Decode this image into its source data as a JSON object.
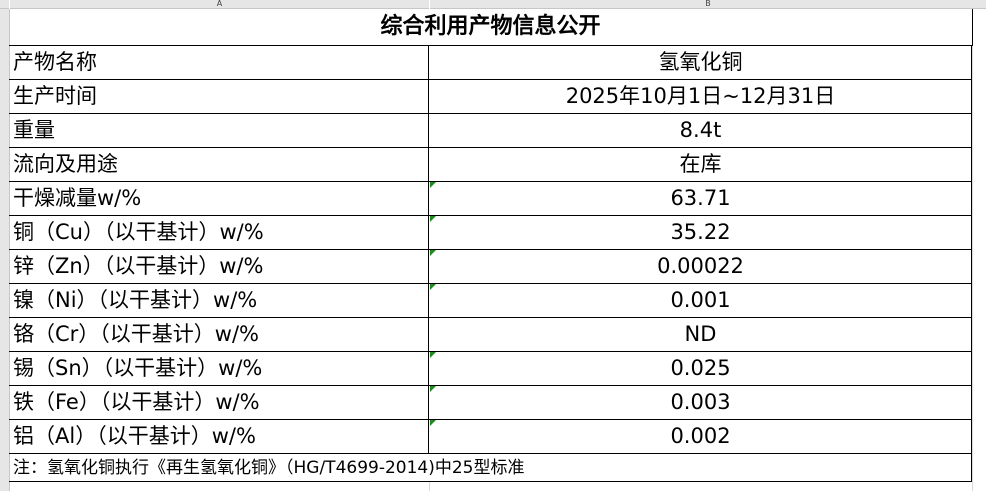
{
  "columns": [
    "A",
    "B"
  ],
  "title": "综合利用产物信息公开",
  "rows": [
    {
      "label": "产物名称",
      "value": "氢氧化铜",
      "flag": false
    },
    {
      "label": "生产时间",
      "value": "2025年10月1日~12月31日",
      "flag": false
    },
    {
      "label": "重量",
      "value": "8.4t",
      "flag": false
    },
    {
      "label": "流向及用途",
      "value": "在库",
      "flag": false
    },
    {
      "label": "干燥减量w/%",
      "value": "63.71",
      "flag": true
    },
    {
      "label": "铜（Cu）（以干基计）w/%",
      "value": "35.22",
      "flag": true
    },
    {
      "label": "锌（Zn）（以干基计）w/%",
      "value": "0.00022",
      "flag": true
    },
    {
      "label": "镍（Ni）（以干基计）w/%",
      "value": "0.001",
      "flag": true
    },
    {
      "label": "铬（Cr）（以干基计）w/%",
      "value": "ND",
      "flag": false
    },
    {
      "label": "锡（Sn）（以干基计）w/%",
      "value": "0.025",
      "flag": true
    },
    {
      "label": "铁（Fe）（以干基计）w/%",
      "value": "0.003",
      "flag": true
    },
    {
      "label": "铝（Al）（以干基计）w/%",
      "value": "0.002",
      "flag": true
    }
  ],
  "note": "注：氢氧化铜执行《再生氢氧化铜》（HG/T4699-2014)中25型标准",
  "colors": {
    "error_flag": "#1f8a1f",
    "header_bg": "#e6e6e6"
  }
}
